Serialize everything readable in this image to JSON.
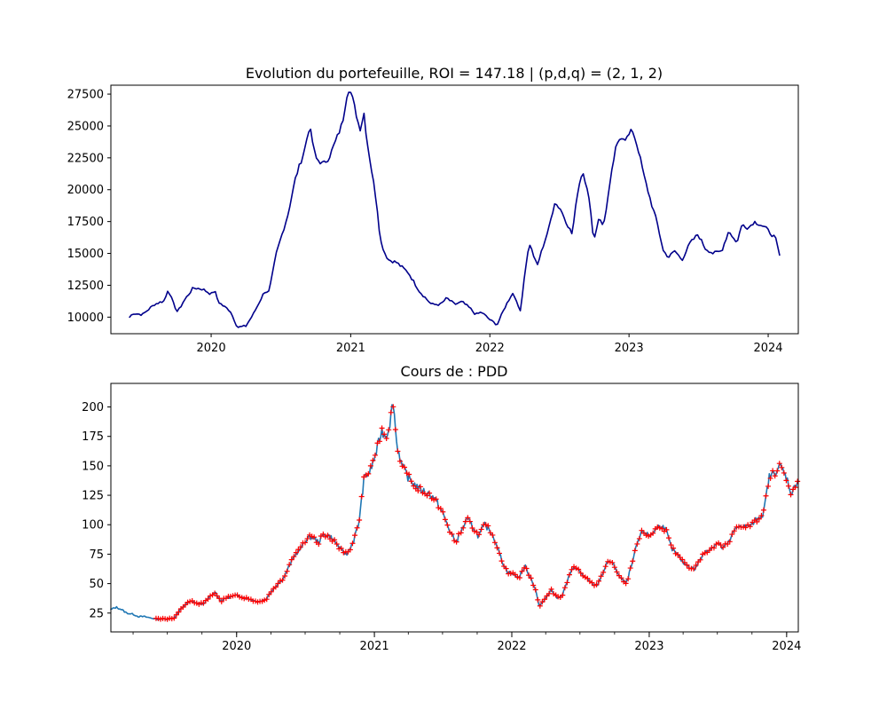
{
  "chart_data": [
    {
      "type": "line",
      "title": "Evolution du portefeuille, ROI = 147.18  |  (p,d,q) = (2, 1, 2)",
      "xlabel": "",
      "ylabel": "",
      "x_range": [
        "2019-06-01",
        "2024-01-31"
      ],
      "xlim": [
        "2019-04-13",
        "2024-03-20"
      ],
      "ylim": [
        8700,
        28200
      ],
      "x_ticks": [
        "2020",
        "2021",
        "2022",
        "2023",
        "2024"
      ],
      "y_ticks": [
        10000,
        12500,
        15000,
        17500,
        20000,
        22500,
        25000,
        27500
      ],
      "y_tick_labels": [
        "10000",
        "12500",
        "15000",
        "17500",
        "20000",
        "22500",
        "25000",
        "27500"
      ],
      "legend": "none",
      "grid": false,
      "colors": {
        "line": "#00008b"
      },
      "series": [
        {
          "x": [
            "2019-06-01",
            "2019-06-10",
            "2019-07-05",
            "2019-08-05",
            "2019-09-01",
            "2019-09-10",
            "2019-09-25",
            "2019-10-05",
            "2019-10-20",
            "2019-11-15",
            "2019-12-10",
            "2020-01-01",
            "2020-01-10",
            "2020-01-20",
            "2020-02-01",
            "2020-02-20",
            "2020-03-10",
            "2020-04-01",
            "2020-04-20",
            "2020-05-20",
            "2020-06-01",
            "2020-06-20",
            "2020-07-20",
            "2020-08-10",
            "2020-09-01",
            "2020-09-15",
            "2020-10-01",
            "2020-10-20",
            "2020-11-05",
            "2020-11-25",
            "2020-12-10",
            "2020-12-25",
            "2021-01-03",
            "2021-01-15",
            "2021-01-25",
            "2021-02-05",
            "2021-02-12",
            "2021-02-25",
            "2021-03-10",
            "2021-03-20",
            "2021-04-01",
            "2021-04-10",
            "2021-05-01",
            "2021-06-01",
            "2021-07-01",
            "2021-08-01",
            "2021-08-25",
            "2021-09-10",
            "2021-10-01",
            "2021-10-20",
            "2021-11-10",
            "2021-11-25",
            "2021-12-10",
            "2022-01-01",
            "2022-01-20",
            "2022-02-10",
            "2022-03-01",
            "2022-03-15",
            "2022-03-20",
            "2022-04-05",
            "2022-04-15",
            "2022-05-05",
            "2022-05-20",
            "2022-06-05",
            "2022-06-20",
            "2022-07-05",
            "2022-07-20",
            "2022-08-05",
            "2022-08-20",
            "2022-09-01",
            "2022-09-15",
            "2022-10-01",
            "2022-10-15",
            "2022-10-25",
            "2022-11-10",
            "2022-11-25",
            "2022-12-10",
            "2022-12-25",
            "2023-01-10",
            "2023-01-25",
            "2023-02-10",
            "2023-02-28",
            "2023-03-15",
            "2023-04-01",
            "2023-04-15",
            "2023-05-01",
            "2023-05-20",
            "2023-06-10",
            "2023-07-01",
            "2023-07-20",
            "2023-08-10",
            "2023-09-01",
            "2023-09-20",
            "2023-10-10",
            "2023-10-25",
            "2023-11-10",
            "2023-11-25",
            "2023-12-10",
            "2023-12-25",
            "2024-01-10",
            "2024-01-20",
            "2024-01-31"
          ],
          "y": [
            10000,
            10300,
            10200,
            11000,
            11300,
            12200,
            11000,
            10400,
            11200,
            12300,
            12200,
            11800,
            12100,
            11200,
            10900,
            10500,
            9200,
            9300,
            10200,
            12000,
            12000,
            15000,
            18000,
            21000,
            23000,
            25000,
            22500,
            22000,
            22500,
            24000,
            25200,
            28000,
            27500,
            26000,
            24700,
            26000,
            24000,
            21500,
            19000,
            16000,
            15000,
            14500,
            14300,
            13500,
            12000,
            11000,
            11000,
            11500,
            11000,
            11200,
            10700,
            10200,
            10400,
            9800,
            9400,
            10800,
            11900,
            11200,
            10000,
            14000,
            15800,
            14000,
            15500,
            17000,
            19000,
            18500,
            17500,
            16500,
            20000,
            21500,
            20000,
            16000,
            18000,
            17000,
            20000,
            23000,
            24200,
            24000,
            24700,
            23200,
            21000,
            19000,
            17500,
            15200,
            14700,
            15200,
            14500,
            15800,
            16500,
            15400,
            15000,
            15200,
            16800,
            15800,
            17300,
            17000,
            17500,
            17300,
            17000,
            16500,
            16200,
            14800
          ]
        }
      ]
    },
    {
      "type": "line",
      "title": "Cours de : PDD",
      "xlabel": "",
      "ylabel": "",
      "xlim": [
        "2019-02-01",
        "2024-02-01"
      ],
      "ylim": [
        9,
        220
      ],
      "x_ticks": [
        "2020",
        "2021",
        "2022",
        "2023",
        "2024"
      ],
      "y_ticks": [
        25,
        50,
        75,
        100,
        125,
        150,
        175,
        200
      ],
      "y_tick_labels": [
        "25",
        "50",
        "75",
        "100",
        "125",
        "150",
        "175",
        "200"
      ],
      "legend": "none",
      "grid": false,
      "colors": {
        "line": "#1f77b4",
        "markers": "#ff0000"
      },
      "marker_range": [
        "2019-06-01",
        "2024-01-31"
      ],
      "series": [
        {
          "x": [
            "2019-02-01",
            "2019-02-15",
            "2019-03-01",
            "2019-03-15",
            "2019-04-01",
            "2019-04-15",
            "2019-05-01",
            "2019-05-15",
            "2019-06-01",
            "2019-06-15",
            "2019-07-01",
            "2019-07-20",
            "2019-08-05",
            "2019-08-20",
            "2019-09-05",
            "2019-09-20",
            "2019-10-05",
            "2019-10-20",
            "2019-11-05",
            "2019-11-20",
            "2019-12-05",
            "2019-12-20",
            "2020-01-05",
            "2020-01-20",
            "2020-02-05",
            "2020-02-20",
            "2020-03-05",
            "2020-03-20",
            "2020-04-05",
            "2020-04-20",
            "2020-05-05",
            "2020-05-20",
            "2020-06-05",
            "2020-06-20",
            "2020-07-05",
            "2020-07-20",
            "2020-08-05",
            "2020-08-20",
            "2020-09-05",
            "2020-09-20",
            "2020-10-05",
            "2020-10-20",
            "2020-11-05",
            "2020-11-20",
            "2020-12-05",
            "2020-12-20",
            "2021-01-05",
            "2021-01-20",
            "2021-02-01",
            "2021-02-10",
            "2021-02-20",
            "2021-03-01",
            "2021-03-15",
            "2021-04-01",
            "2021-04-15",
            "2021-05-01",
            "2021-05-15",
            "2021-06-01",
            "2021-06-15",
            "2021-07-01",
            "2021-07-20",
            "2021-08-05",
            "2021-08-20",
            "2021-09-05",
            "2021-09-20",
            "2021-10-05",
            "2021-10-20",
            "2021-11-05",
            "2021-11-20",
            "2021-12-05",
            "2021-12-20",
            "2022-01-05",
            "2022-01-20",
            "2022-02-05",
            "2022-02-20",
            "2022-03-05",
            "2022-03-15",
            "2022-04-01",
            "2022-04-15",
            "2022-05-01",
            "2022-05-15",
            "2022-06-01",
            "2022-06-15",
            "2022-07-01",
            "2022-07-15",
            "2022-08-01",
            "2022-08-15",
            "2022-09-01",
            "2022-09-15",
            "2022-10-01",
            "2022-10-15",
            "2022-11-01",
            "2022-11-15",
            "2022-12-01",
            "2022-12-15",
            "2023-01-01",
            "2023-01-15",
            "2023-02-01",
            "2023-02-15",
            "2023-03-01",
            "2023-03-15",
            "2023-04-01",
            "2023-04-15",
            "2023-05-01",
            "2023-05-15",
            "2023-06-01",
            "2023-06-15",
            "2023-07-01",
            "2023-07-15",
            "2023-08-01",
            "2023-08-15",
            "2023-09-01",
            "2023-09-15",
            "2023-10-01",
            "2023-10-15",
            "2023-11-01",
            "2023-11-15",
            "2023-12-01",
            "2023-12-15",
            "2024-01-01",
            "2024-01-15",
            "2024-01-25",
            "2024-02-01"
          ],
          "y": [
            28,
            30,
            28,
            25,
            24,
            22,
            22,
            21,
            20,
            20,
            20,
            21,
            28,
            33,
            35,
            33,
            33,
            38,
            43,
            35,
            38,
            39,
            40,
            38,
            37,
            35,
            35,
            37,
            45,
            50,
            55,
            65,
            75,
            80,
            88,
            90,
            85,
            92,
            90,
            85,
            78,
            75,
            85,
            100,
            140,
            145,
            160,
            180,
            175,
            185,
            205,
            170,
            150,
            140,
            135,
            130,
            128,
            125,
            120,
            110,
            95,
            85,
            95,
            105,
            98,
            90,
            100,
            95,
            85,
            70,
            60,
            58,
            55,
            65,
            55,
            45,
            30,
            38,
            45,
            38,
            40,
            55,
            65,
            60,
            55,
            50,
            48,
            60,
            70,
            65,
            55,
            50,
            65,
            85,
            95,
            90,
            95,
            100,
            95,
            80,
            75,
            68,
            65,
            62,
            70,
            78,
            80,
            85,
            80,
            85,
            95,
            100,
            98,
            100,
            105,
            110,
            140,
            145,
            150,
            140,
            125,
            135,
            138
          ]
        }
      ]
    }
  ]
}
